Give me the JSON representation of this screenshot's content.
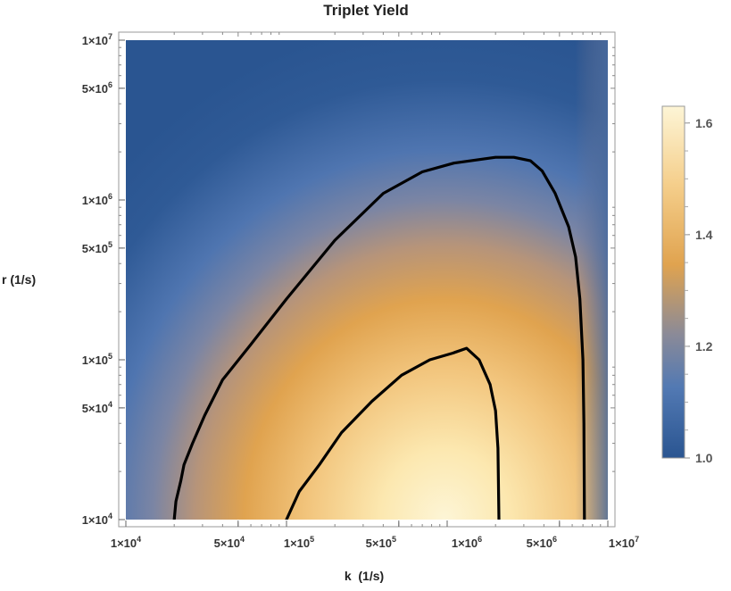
{
  "chart_data": {
    "type": "heatmap",
    "title": "Triplet Yield",
    "xlabel": "k  (1/s)",
    "ylabel": "r (1/s)",
    "x_scale": "log",
    "y_scale": "log",
    "xlim": [
      10000,
      10000000
    ],
    "ylim": [
      10000,
      10000000
    ],
    "x_tick_labels": [
      {
        "value": 10000,
        "label": "1×10",
        "exp": "4"
      },
      {
        "value": 50000,
        "label": "5×10",
        "exp": "4"
      },
      {
        "value": 100000,
        "label": "1×10",
        "exp": "5"
      },
      {
        "value": 500000,
        "label": "5×10",
        "exp": "5"
      },
      {
        "value": 1000000,
        "label": "1×10",
        "exp": "6"
      },
      {
        "value": 5000000,
        "label": "5×10",
        "exp": "6"
      },
      {
        "value": 10000000,
        "label": "1×10",
        "exp": "7"
      }
    ],
    "y_tick_labels": [
      {
        "value": 10000,
        "label": "1×10",
        "exp": "4"
      },
      {
        "value": 50000,
        "label": "5×10",
        "exp": "4"
      },
      {
        "value": 100000,
        "label": "1×10",
        "exp": "5"
      },
      {
        "value": 500000,
        "label": "5×10",
        "exp": "5"
      },
      {
        "value": 1000000,
        "label": "1×10",
        "exp": "6"
      },
      {
        "value": 5000000,
        "label": "5×10",
        "exp": "6"
      },
      {
        "value": 10000000,
        "label": "1×10",
        "exp": "7"
      }
    ],
    "colorbar": {
      "range": [
        1.0,
        1.63
      ],
      "tick_labels": [
        "1.0",
        "1.2",
        "1.4",
        "1.6"
      ],
      "tick_values": [
        1.0,
        1.2,
        1.4,
        1.6
      ],
      "colors": [
        "#2a5591",
        "#5379b3",
        "#8c8a96",
        "#e0a34f",
        "#f5cf8c",
        "#fdf5d6"
      ]
    },
    "peak": {
      "k": 1100000,
      "r": 10000,
      "value": 1.63
    },
    "contours": [
      {
        "level": 1.3,
        "points": [
          [
            20000,
            10000
          ],
          [
            20500,
            13000
          ],
          [
            22000,
            17500
          ],
          [
            23000,
            22000
          ],
          [
            26000,
            30000
          ],
          [
            31000,
            45000
          ],
          [
            40000,
            75000
          ],
          [
            60000,
            125000
          ],
          [
            100000,
            240000
          ],
          [
            200000,
            560000
          ],
          [
            400000,
            1100000
          ],
          [
            700000,
            1500000
          ],
          [
            1100000,
            1700000
          ],
          [
            2000000,
            1850000
          ],
          [
            2600000,
            1850000
          ],
          [
            3300000,
            1760000
          ],
          [
            3900000,
            1520000
          ],
          [
            4700000,
            1100000
          ],
          [
            5700000,
            680000
          ],
          [
            6300000,
            440000
          ],
          [
            6700000,
            240000
          ],
          [
            7000000,
            100000
          ],
          [
            7100000,
            40000
          ],
          [
            7150000,
            10000
          ]
        ]
      },
      {
        "level": 1.5,
        "points": [
          [
            100000,
            10000
          ],
          [
            120000,
            15000
          ],
          [
            160000,
            22000
          ],
          [
            220000,
            35000
          ],
          [
            340000,
            55000
          ],
          [
            520000,
            80000
          ],
          [
            780000,
            100000
          ],
          [
            1080000,
            110000
          ],
          [
            1320000,
            118000
          ],
          [
            1580000,
            100000
          ],
          [
            1850000,
            70000
          ],
          [
            2000000,
            48000
          ],
          [
            2070000,
            28000
          ],
          [
            2100000,
            10000
          ]
        ]
      }
    ],
    "grid": false,
    "legend": "colorbar-right"
  }
}
